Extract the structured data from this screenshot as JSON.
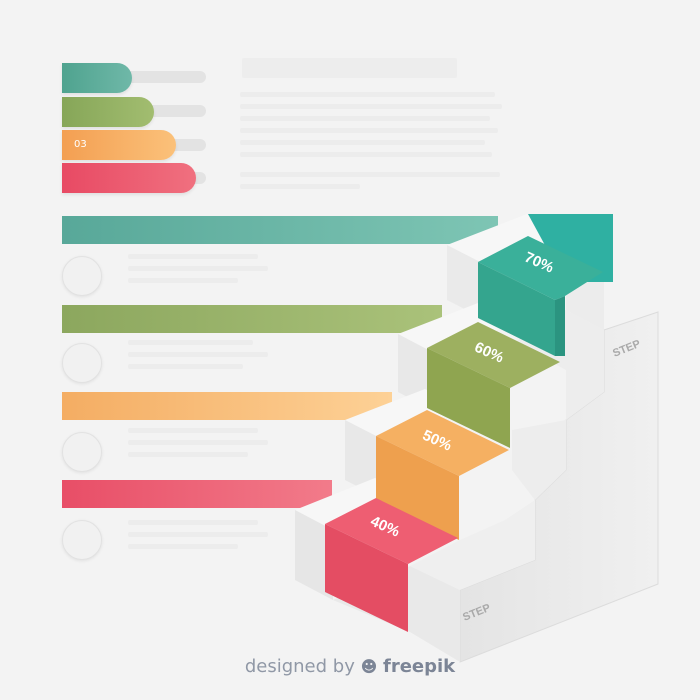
{
  "level_bars": [
    {
      "label": "",
      "fill": 0.38,
      "color": "#5aa898"
    },
    {
      "label": "",
      "fill": 0.62,
      "color": "#8fac62"
    },
    {
      "label": "03",
      "fill": 0.8,
      "color": "#f4ab62"
    },
    {
      "label": "",
      "fill": 0.9,
      "color": "#ea5a70"
    }
  ],
  "steps": [
    {
      "label": "70%",
      "color": "#3aa88f"
    },
    {
      "label": "60%",
      "color": "#95aa55"
    },
    {
      "label": "50%",
      "color": "#f2a558"
    },
    {
      "label": "40%",
      "color": "#e9546c"
    }
  ],
  "stair_labels": {
    "top": "STEP",
    "bottom": "STEP"
  },
  "footer": {
    "prefix": "designed by",
    "brand": "freepik"
  }
}
